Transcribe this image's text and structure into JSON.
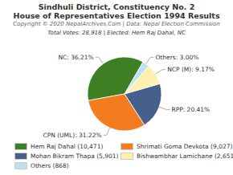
{
  "chart_data": {
    "type": "pie",
    "title": "Sindhuli District, Constituency No. 2",
    "subtitle": "House of Representatives Election 1994 Results",
    "annotations": [
      "Copyright © 2020 NepalArchives.Com | Data: Nepal Election Commission",
      "Total Votes: 28,918 | Elected: Hem Raj Dahal, NC"
    ],
    "categories": [
      "Hem Raj Dahal (10,471)",
      "Shrimati Goma Devkota (9,027)",
      "Mohan Bikram Thapa (5,901)",
      "Bishwambhar Lamichane (2,651)",
      "Others (868)"
    ],
    "values": [
      36.21,
      31.22,
      20.41,
      9.17,
      3.0
    ],
    "value_labels": [
      "NC: 36.21%",
      "CPN (UML): 31.22%",
      "RPP: 20.41%",
      "NCP (M): 9.17%",
      "Others: 3.00%"
    ],
    "colors": [
      "#3d7f22",
      "#f47b20",
      "#465f8c",
      "#fdf0b0",
      "#bfe0f3"
    ],
    "data_labels": true,
    "legend": "bottom"
  }
}
